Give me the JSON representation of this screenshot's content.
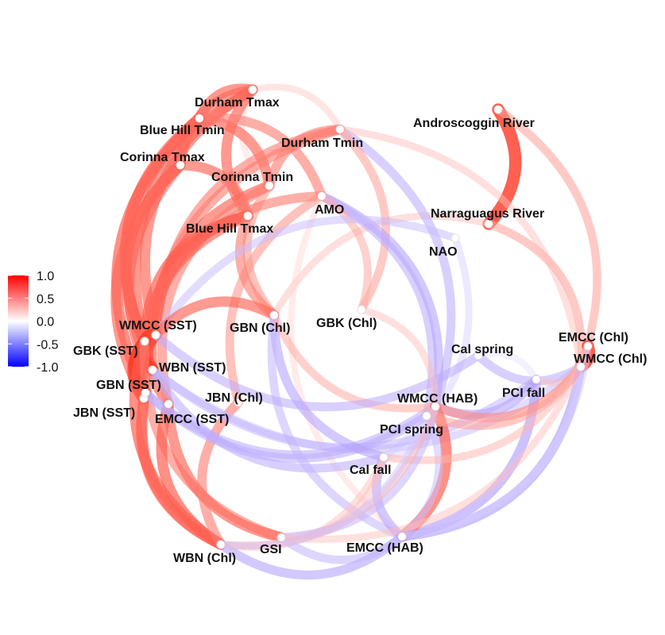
{
  "nodes": [
    {
      "id": "androscoggin",
      "label": "Androscoggin River"
    },
    {
      "id": "narraguagus",
      "label": "Narraguagus River"
    },
    {
      "id": "nao",
      "label": "NAO"
    },
    {
      "id": "emcc_chl",
      "label": "EMCC (Chl)"
    },
    {
      "id": "wmcc_chl",
      "label": "WMCC (Chl)"
    },
    {
      "id": "cal_spring",
      "label": "Cal spring"
    },
    {
      "id": "pci_fall",
      "label": "PCI fall"
    },
    {
      "id": "wmcc_hab",
      "label": "WMCC (HAB)"
    },
    {
      "id": "pci_spring",
      "label": "PCI spring"
    },
    {
      "id": "cal_fall",
      "label": "Cal fall"
    },
    {
      "id": "emcc_hab",
      "label": "EMCC (HAB)"
    },
    {
      "id": "gsi",
      "label": "GSI"
    },
    {
      "id": "wbn_chl",
      "label": "WBN (Chl)"
    },
    {
      "id": "emcc_sst",
      "label": "EMCC (SST)"
    },
    {
      "id": "jbn_chl",
      "label": "JBN (Chl)"
    },
    {
      "id": "jbn_sst",
      "label": "JBN (SST)"
    },
    {
      "id": "gbn_sst",
      "label": "GBN (SST)"
    },
    {
      "id": "wbn_sst",
      "label": "WBN (SST)"
    },
    {
      "id": "gbk_sst",
      "label": "GBK (SST)"
    },
    {
      "id": "wmcc_sst",
      "label": "WMCC (SST)"
    },
    {
      "id": "gbn_chl",
      "label": "GBN (Chl)"
    },
    {
      "id": "gbk_chl",
      "label": "GBK (Chl)"
    },
    {
      "id": "blue_hill_tmax",
      "label": "Blue Hill Tmax"
    },
    {
      "id": "amo",
      "label": "AMO"
    },
    {
      "id": "corinna_tmin",
      "label": "Corinna Tmin"
    },
    {
      "id": "corinna_tmax",
      "label": "Corinna Tmax"
    },
    {
      "id": "blue_hill_tmin",
      "label": "Blue Hill Tmin"
    },
    {
      "id": "durham_tmin",
      "label": "Durham Tmin"
    },
    {
      "id": "durham_tmax",
      "label": "Durham Tmax"
    }
  ],
  "edges": [
    {
      "from": "androscoggin",
      "to": "narraguagus",
      "r": 0.95
    },
    {
      "from": "androscoggin",
      "to": "wmcc_chl",
      "r": 0.45
    },
    {
      "from": "narraguagus",
      "to": "wmcc_chl",
      "r": 0.45
    },
    {
      "from": "narraguagus",
      "to": "gbn_chl",
      "r": 0.3
    },
    {
      "from": "emcc_chl",
      "to": "wmcc_chl",
      "r": 0.95
    },
    {
      "from": "durham_tmax",
      "to": "durham_tmin",
      "r": 0.25
    },
    {
      "from": "durham_tmax",
      "to": "corinna_tmin",
      "r": 0.2
    },
    {
      "from": "durham_tmax",
      "to": "blue_hill_tmin",
      "r": 0.7
    },
    {
      "from": "durham_tmax",
      "to": "corinna_tmax",
      "r": 0.7
    },
    {
      "from": "durham_tmax",
      "to": "blue_hill_tmax",
      "r": 0.7
    },
    {
      "from": "durham_tmax",
      "to": "gbk_sst",
      "r": 0.7
    },
    {
      "from": "durham_tmax",
      "to": "wmcc_sst",
      "r": 0.7
    },
    {
      "from": "blue_hill_tmin",
      "to": "corinna_tmin",
      "r": 0.7
    },
    {
      "from": "blue_hill_tmin",
      "to": "amo",
      "r": 0.6
    },
    {
      "from": "blue_hill_tmin",
      "to": "gbk_sst",
      "r": 0.75
    },
    {
      "from": "blue_hill_tmin",
      "to": "gbn_sst",
      "r": 0.75
    },
    {
      "from": "blue_hill_tmin",
      "to": "wbn_sst",
      "r": 0.7
    },
    {
      "from": "corinna_tmax",
      "to": "blue_hill_tmax",
      "r": 0.7
    },
    {
      "from": "corinna_tmax",
      "to": "gbk_sst",
      "r": 0.75
    },
    {
      "from": "corinna_tmax",
      "to": "jbn_sst",
      "r": 0.7
    },
    {
      "from": "corinna_tmax",
      "to": "emcc_sst",
      "r": 0.7
    },
    {
      "from": "durham_tmin",
      "to": "corinna_tmin",
      "r": 0.6
    },
    {
      "from": "durham_tmin",
      "to": "wmcc_hab",
      "r": -0.5
    },
    {
      "from": "durham_tmin",
      "to": "gbk_chl",
      "r": 0.45
    },
    {
      "from": "durham_tmin",
      "to": "wmcc_sst",
      "r": 0.6
    },
    {
      "from": "durham_tmin",
      "to": "wmcc_chl",
      "r": 0.3
    },
    {
      "from": "durham_tmin",
      "to": "gbn_sst",
      "r": 0.6
    },
    {
      "from": "corinna_tmin",
      "to": "wbn_sst",
      "r": 0.7
    },
    {
      "from": "corinna_tmin",
      "to": "gbn_chl",
      "r": 0.5
    },
    {
      "from": "corinna_tmin",
      "to": "emcc_sst",
      "r": 0.6
    },
    {
      "from": "amo",
      "to": "wmcc_hab",
      "r": -0.55
    },
    {
      "from": "amo",
      "to": "pci_spring",
      "r": -0.5
    },
    {
      "from": "amo",
      "to": "gbk_sst",
      "r": 0.6
    },
    {
      "from": "amo",
      "to": "jbn_chl",
      "r": 0.5
    },
    {
      "from": "amo",
      "to": "emcc_hab",
      "r": 0.2
    },
    {
      "from": "amo",
      "to": "gbk_chl",
      "r": 0.4
    },
    {
      "from": "blue_hill_tmax",
      "to": "gbk_sst",
      "r": 0.75
    },
    {
      "from": "blue_hill_tmax",
      "to": "wmcc_sst",
      "r": 0.75
    },
    {
      "from": "blue_hill_tmax",
      "to": "jbn_sst",
      "r": 0.7
    },
    {
      "from": "blue_hill_tmax",
      "to": "gbn_chl",
      "r": 0.6
    },
    {
      "from": "nao",
      "to": "wmcc_sst",
      "r": -0.4
    },
    {
      "from": "nao",
      "to": "cal_fall",
      "r": -0.3
    },
    {
      "from": "wmcc_sst",
      "to": "gbk_sst",
      "r": 0.95
    },
    {
      "from": "wmcc_sst",
      "to": "wbn_sst",
      "r": 0.85
    },
    {
      "from": "wmcc_sst",
      "to": "gbn_sst",
      "r": 0.85
    },
    {
      "from": "wmcc_sst",
      "to": "gbn_chl",
      "r": 0.7
    },
    {
      "from": "gbk_sst",
      "to": "wbn_sst",
      "r": 0.95
    },
    {
      "from": "gbk_sst",
      "to": "gbn_sst",
      "r": 0.95
    },
    {
      "from": "gbk_sst",
      "to": "jbn_sst",
      "r": 0.9
    },
    {
      "from": "gbk_sst",
      "to": "wbn_chl",
      "r": 0.75
    },
    {
      "from": "gbk_sst",
      "to": "gsi",
      "r": 0.6
    },
    {
      "from": "gbn_sst",
      "to": "wbn_chl",
      "r": 0.75
    },
    {
      "from": "jbn_sst",
      "to": "wbn_chl",
      "r": 0.7
    },
    {
      "from": "emcc_sst",
      "to": "wbn_chl",
      "r": 0.75
    },
    {
      "from": "emcc_sst",
      "to": "gsi",
      "r": 0.7
    },
    {
      "from": "jbn_chl",
      "to": "wbn_chl",
      "r": 0.6
    },
    {
      "from": "wbn_sst",
      "to": "wmcc_chl",
      "r": -0.4
    },
    {
      "from": "wbn_sst",
      "to": "pci_fall",
      "r": -0.45
    },
    {
      "from": "wbn_sst",
      "to": "cal_fall",
      "r": -0.5
    },
    {
      "from": "gbn_sst",
      "to": "wmcc_hab",
      "r": -0.5
    },
    {
      "from": "gbn_sst",
      "to": "pci_spring",
      "r": -0.5
    },
    {
      "from": "gbn_chl",
      "to": "cal_fall",
      "r": -0.55
    },
    {
      "from": "gbn_chl",
      "to": "emcc_hab",
      "r": -0.45
    },
    {
      "from": "gbn_chl",
      "to": "wmcc_hab",
      "r": 0.4
    },
    {
      "from": "cal_spring",
      "to": "wmcc_chl",
      "r": -0.5
    },
    {
      "from": "cal_spring",
      "to": "wmcc_sst",
      "r": -0.5
    },
    {
      "from": "cal_spring",
      "to": "pci_fall",
      "r": -0.2
    },
    {
      "from": "pci_fall",
      "to": "wmcc_hab",
      "r": -0.55
    },
    {
      "from": "pci_fall",
      "to": "emcc_hab",
      "r": -0.6
    },
    {
      "from": "pci_fall",
      "to": "wmcc_chl",
      "r": 0.3
    },
    {
      "from": "wmcc_hab",
      "to": "emcc_hab",
      "r": 0.75
    },
    {
      "from": "wmcc_hab",
      "to": "wmcc_chl",
      "r": 0.55
    },
    {
      "from": "wmcc_hab",
      "to": "pci_spring",
      "r": 0.3
    },
    {
      "from": "wmcc_hab",
      "to": "cal_fall",
      "r": -0.3
    },
    {
      "from": "pci_spring",
      "to": "wmcc_chl",
      "r": 0.45
    },
    {
      "from": "pci_spring",
      "to": "emcc_hab",
      "r": -0.4
    },
    {
      "from": "cal_fall",
      "to": "emcc_hab",
      "r": -0.55
    },
    {
      "from": "cal_fall",
      "to": "emcc_chl",
      "r": 0.35
    },
    {
      "from": "cal_fall",
      "to": "gsi",
      "r": 0.3
    },
    {
      "from": "cal_fall",
      "to": "wbn_chl",
      "r": 0.3
    },
    {
      "from": "emcc_hab",
      "to": "wbn_chl",
      "r": -0.55
    },
    {
      "from": "emcc_hab",
      "to": "gsi",
      "r": -0.45
    },
    {
      "from": "emcc_hab",
      "to": "wmcc_chl",
      "r": -0.6
    },
    {
      "from": "gsi",
      "to": "wmcc_hab",
      "r": -0.45
    },
    {
      "from": "gsi",
      "to": "emcc_chl",
      "r": 0.3
    },
    {
      "from": "wbn_chl",
      "to": "wmcc_hab",
      "r": 0.35
    },
    {
      "from": "wbn_chl",
      "to": "pci_spring",
      "r": -0.35
    },
    {
      "from": "gbk_chl",
      "to": "wmcc_hab",
      "r": 0.3
    },
    {
      "from": "emcc_chl",
      "to": "emcc_hab",
      "r": -0.3
    }
  ],
  "legend": {
    "ticks": [
      "1.0",
      "0.5",
      "0.0",
      "-0.5",
      "-1.0"
    ],
    "tick_values": [
      1.0,
      0.5,
      0.0,
      -0.5,
      -1.0
    ],
    "colors": {
      "high": "#ff0000",
      "mid": "#ffffff",
      "low": "#0000ff"
    }
  }
}
